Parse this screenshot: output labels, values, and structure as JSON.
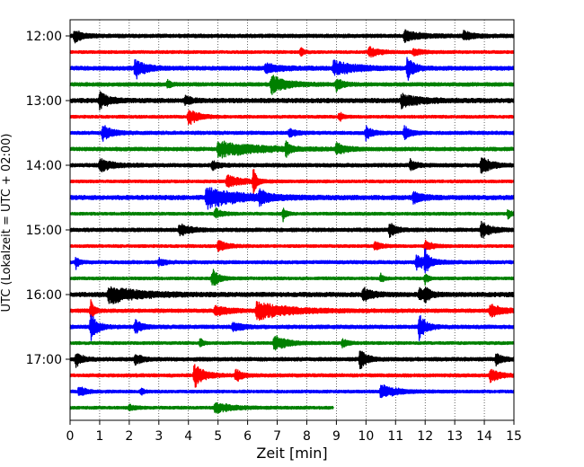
{
  "chart_data": {
    "type": "line",
    "subtype": "helicorder",
    "xlabel": "Zeit  [min]",
    "ylabel": "UTC (Lokalzeit = UTC + 02:00)",
    "xlim": [
      0,
      15
    ],
    "x_ticks": [
      "0",
      "1",
      "2",
      "3",
      "4",
      "5",
      "6",
      "7",
      "8",
      "9",
      "10",
      "11",
      "12",
      "13",
      "14",
      "15"
    ],
    "y_tick_labels": [
      "12:00",
      "13:00",
      "14:00",
      "15:00",
      "16:00",
      "17:00"
    ],
    "grid": "vertical-dotted",
    "trace_minutes": 15,
    "trace_colors": [
      "#000000",
      "#ff0000",
      "#0000ff",
      "#008000"
    ],
    "series": [
      {
        "start": "12:00",
        "end_min": 15,
        "noise": 2.0,
        "events": [
          [
            0.15,
            7,
            0.25
          ],
          [
            11.3,
            6,
            0.5
          ],
          [
            13.3,
            5,
            0.3
          ]
        ]
      },
      {
        "start": "12:15",
        "end_min": 15,
        "noise": 1.6,
        "events": [
          [
            7.8,
            5,
            0.1
          ],
          [
            10.1,
            6,
            0.3
          ],
          [
            11.6,
            4,
            0.3
          ]
        ]
      },
      {
        "start": "12:30",
        "end_min": 15,
        "noise": 2.2,
        "events": [
          [
            2.2,
            12,
            0.3
          ],
          [
            6.6,
            5,
            0.5
          ],
          [
            8.9,
            8,
            0.7
          ],
          [
            11.4,
            14,
            0.2
          ]
        ]
      },
      {
        "start": "12:45",
        "end_min": 15,
        "noise": 2.0,
        "events": [
          [
            6.8,
            10,
            0.5
          ],
          [
            9.0,
            7,
            0.2
          ],
          [
            3.3,
            5,
            0.1
          ]
        ]
      },
      {
        "start": "13:00",
        "end_min": 15,
        "noise": 2.4,
        "events": [
          [
            1.0,
            9,
            0.3
          ],
          [
            11.2,
            7,
            0.6
          ],
          [
            3.9,
            5,
            0.2
          ]
        ]
      },
      {
        "start": "13:15",
        "end_min": 15,
        "noise": 1.6,
        "events": [
          [
            4.0,
            10,
            0.3
          ],
          [
            9.1,
            6,
            0.1
          ]
        ]
      },
      {
        "start": "13:30",
        "end_min": 15,
        "noise": 1.8,
        "events": [
          [
            1.1,
            9,
            0.3
          ],
          [
            7.4,
            6,
            0.2
          ],
          [
            10.0,
            8,
            0.2
          ],
          [
            11.3,
            7,
            0.2
          ]
        ]
      },
      {
        "start": "13:45",
        "end_min": 15,
        "noise": 2.0,
        "events": [
          [
            5.0,
            9,
            1.2
          ],
          [
            7.3,
            10,
            0.1
          ],
          [
            9.0,
            6,
            0.3
          ]
        ]
      },
      {
        "start": "14:00",
        "end_min": 15,
        "noise": 2.0,
        "events": [
          [
            1.0,
            7,
            0.4
          ],
          [
            11.5,
            6,
            0.2
          ],
          [
            13.9,
            10,
            0.3
          ],
          [
            4.8,
            5,
            0.2
          ]
        ]
      },
      {
        "start": "14:15",
        "end_min": 15,
        "noise": 1.6,
        "events": [
          [
            6.2,
            16,
            0.1
          ],
          [
            5.3,
            7,
            0.5
          ]
        ]
      },
      {
        "start": "14:30",
        "end_min": 15,
        "noise": 2.4,
        "events": [
          [
            4.6,
            12,
            1.0
          ],
          [
            6.4,
            7,
            0.3
          ],
          [
            11.6,
            6,
            0.3
          ]
        ]
      },
      {
        "start": "14:45",
        "end_min": 15,
        "noise": 1.6,
        "events": [
          [
            7.2,
            8,
            0.1
          ],
          [
            4.9,
            6,
            0.2
          ],
          [
            14.8,
            6,
            0.1
          ]
        ]
      },
      {
        "start": "15:00",
        "end_min": 15,
        "noise": 2.0,
        "events": [
          [
            3.7,
            7,
            0.3
          ],
          [
            10.8,
            8,
            0.2
          ],
          [
            13.9,
            9,
            0.3
          ]
        ]
      },
      {
        "start": "15:15",
        "end_min": 15,
        "noise": 1.6,
        "events": [
          [
            5.0,
            6,
            0.3
          ],
          [
            10.3,
            5,
            0.2
          ],
          [
            12.0,
            7,
            0.2
          ]
        ]
      },
      {
        "start": "15:30",
        "end_min": 15,
        "noise": 1.8,
        "events": [
          [
            0.2,
            7,
            0.1
          ],
          [
            11.7,
            8,
            0.4
          ],
          [
            12.0,
            14,
            0.1
          ],
          [
            3.0,
            4,
            0.2
          ]
        ]
      },
      {
        "start": "15:45",
        "end_min": 15,
        "noise": 1.6,
        "events": [
          [
            4.8,
            11,
            0.2
          ],
          [
            12.0,
            6,
            0.1
          ],
          [
            10.5,
            5,
            0.1
          ]
        ]
      },
      {
        "start": "16:00",
        "end_min": 15,
        "noise": 2.4,
        "events": [
          [
            1.3,
            10,
            0.9
          ],
          [
            9.9,
            7,
            0.3
          ],
          [
            11.8,
            6,
            0.3
          ],
          [
            12.0,
            9,
            0.1
          ]
        ]
      },
      {
        "start": "16:15",
        "end_min": 15,
        "noise": 2.0,
        "events": [
          [
            0.7,
            14,
            0.1
          ],
          [
            6.3,
            10,
            1.0
          ],
          [
            4.9,
            6,
            0.4
          ],
          [
            14.2,
            7,
            0.4
          ]
        ]
      },
      {
        "start": "16:30",
        "end_min": 15,
        "noise": 2.0,
        "events": [
          [
            0.7,
            16,
            0.2
          ],
          [
            2.2,
            8,
            0.2
          ],
          [
            11.8,
            16,
            0.2
          ],
          [
            5.5,
            5,
            0.3
          ]
        ]
      },
      {
        "start": "16:45",
        "end_min": 15,
        "noise": 1.6,
        "events": [
          [
            6.9,
            9,
            0.4
          ],
          [
            4.4,
            5,
            0.1
          ],
          [
            9.2,
            4,
            0.2
          ]
        ]
      },
      {
        "start": "17:00",
        "end_min": 15,
        "noise": 2.0,
        "events": [
          [
            0.2,
            8,
            0.2
          ],
          [
            2.2,
            6,
            0.2
          ],
          [
            9.8,
            12,
            0.2
          ],
          [
            14.4,
            6,
            0.2
          ]
        ]
      },
      {
        "start": "17:15",
        "end_min": 15,
        "noise": 1.8,
        "events": [
          [
            4.2,
            14,
            0.3
          ],
          [
            5.6,
            7,
            0.2
          ],
          [
            14.2,
            7,
            0.3
          ]
        ]
      },
      {
        "start": "17:30",
        "end_min": 15,
        "noise": 1.6,
        "events": [
          [
            0.3,
            7,
            0.2
          ],
          [
            10.5,
            8,
            0.5
          ],
          [
            2.4,
            4,
            0.1
          ]
        ]
      },
      {
        "start": "17:45",
        "end_min": 8.9,
        "noise": 1.6,
        "events": [
          [
            4.9,
            6,
            0.5
          ],
          [
            2.0,
            3,
            0.2
          ]
        ]
      }
    ]
  }
}
